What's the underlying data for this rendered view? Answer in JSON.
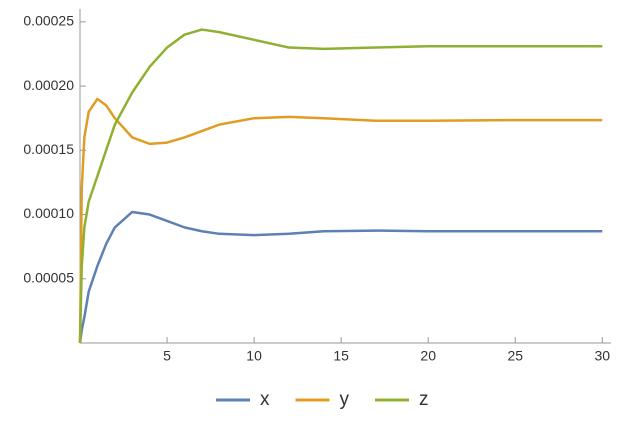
{
  "chart_data": {
    "type": "line",
    "x": [
      0,
      0.1,
      0.25,
      0.5,
      1,
      1.5,
      2,
      3,
      4,
      5,
      6,
      7,
      8,
      10,
      12,
      14,
      17,
      20,
      25,
      30
    ],
    "series": [
      {
        "name": "x",
        "color": "#5e81b5",
        "values": [
          0,
          1e-05,
          2e-05,
          4e-05,
          6e-05,
          7.7e-05,
          9e-05,
          0.000102,
          0.0001,
          9.5e-05,
          9e-05,
          8.7e-05,
          8.5e-05,
          8.4e-05,
          8.5e-05,
          8.7e-05,
          8.75e-05,
          8.7e-05,
          8.7e-05,
          8.7e-05
        ]
      },
      {
        "name": "y",
        "color": "#e19c24",
        "values": [
          0,
          0.00012,
          0.00016,
          0.00018,
          0.00019,
          0.000185,
          0.000175,
          0.00016,
          0.000155,
          0.000156,
          0.00016,
          0.000165,
          0.00017,
          0.000175,
          0.000176,
          0.000175,
          0.000173,
          0.000173,
          0.0001735,
          0.0001735
        ]
      },
      {
        "name": "z",
        "color": "#8fb032",
        "values": [
          0,
          6e-05,
          9e-05,
          0.00011,
          0.00013,
          0.00015,
          0.00017,
          0.000195,
          0.000215,
          0.00023,
          0.00024,
          0.000244,
          0.000242,
          0.000236,
          0.00023,
          0.000229,
          0.00023,
          0.000231,
          0.000231,
          0.000231
        ]
      }
    ],
    "xlim": [
      0,
      30.5
    ],
    "xticks": [
      5,
      10,
      15,
      20,
      25,
      30
    ],
    "ylim": [
      0,
      0.00026
    ],
    "yticks": [
      5e-05,
      {
        "value": 0.0001,
        "label": "0.00010"
      },
      0.00015,
      {
        "value": 0.0002,
        "label": "0.00020"
      },
      0.00025
    ]
  }
}
